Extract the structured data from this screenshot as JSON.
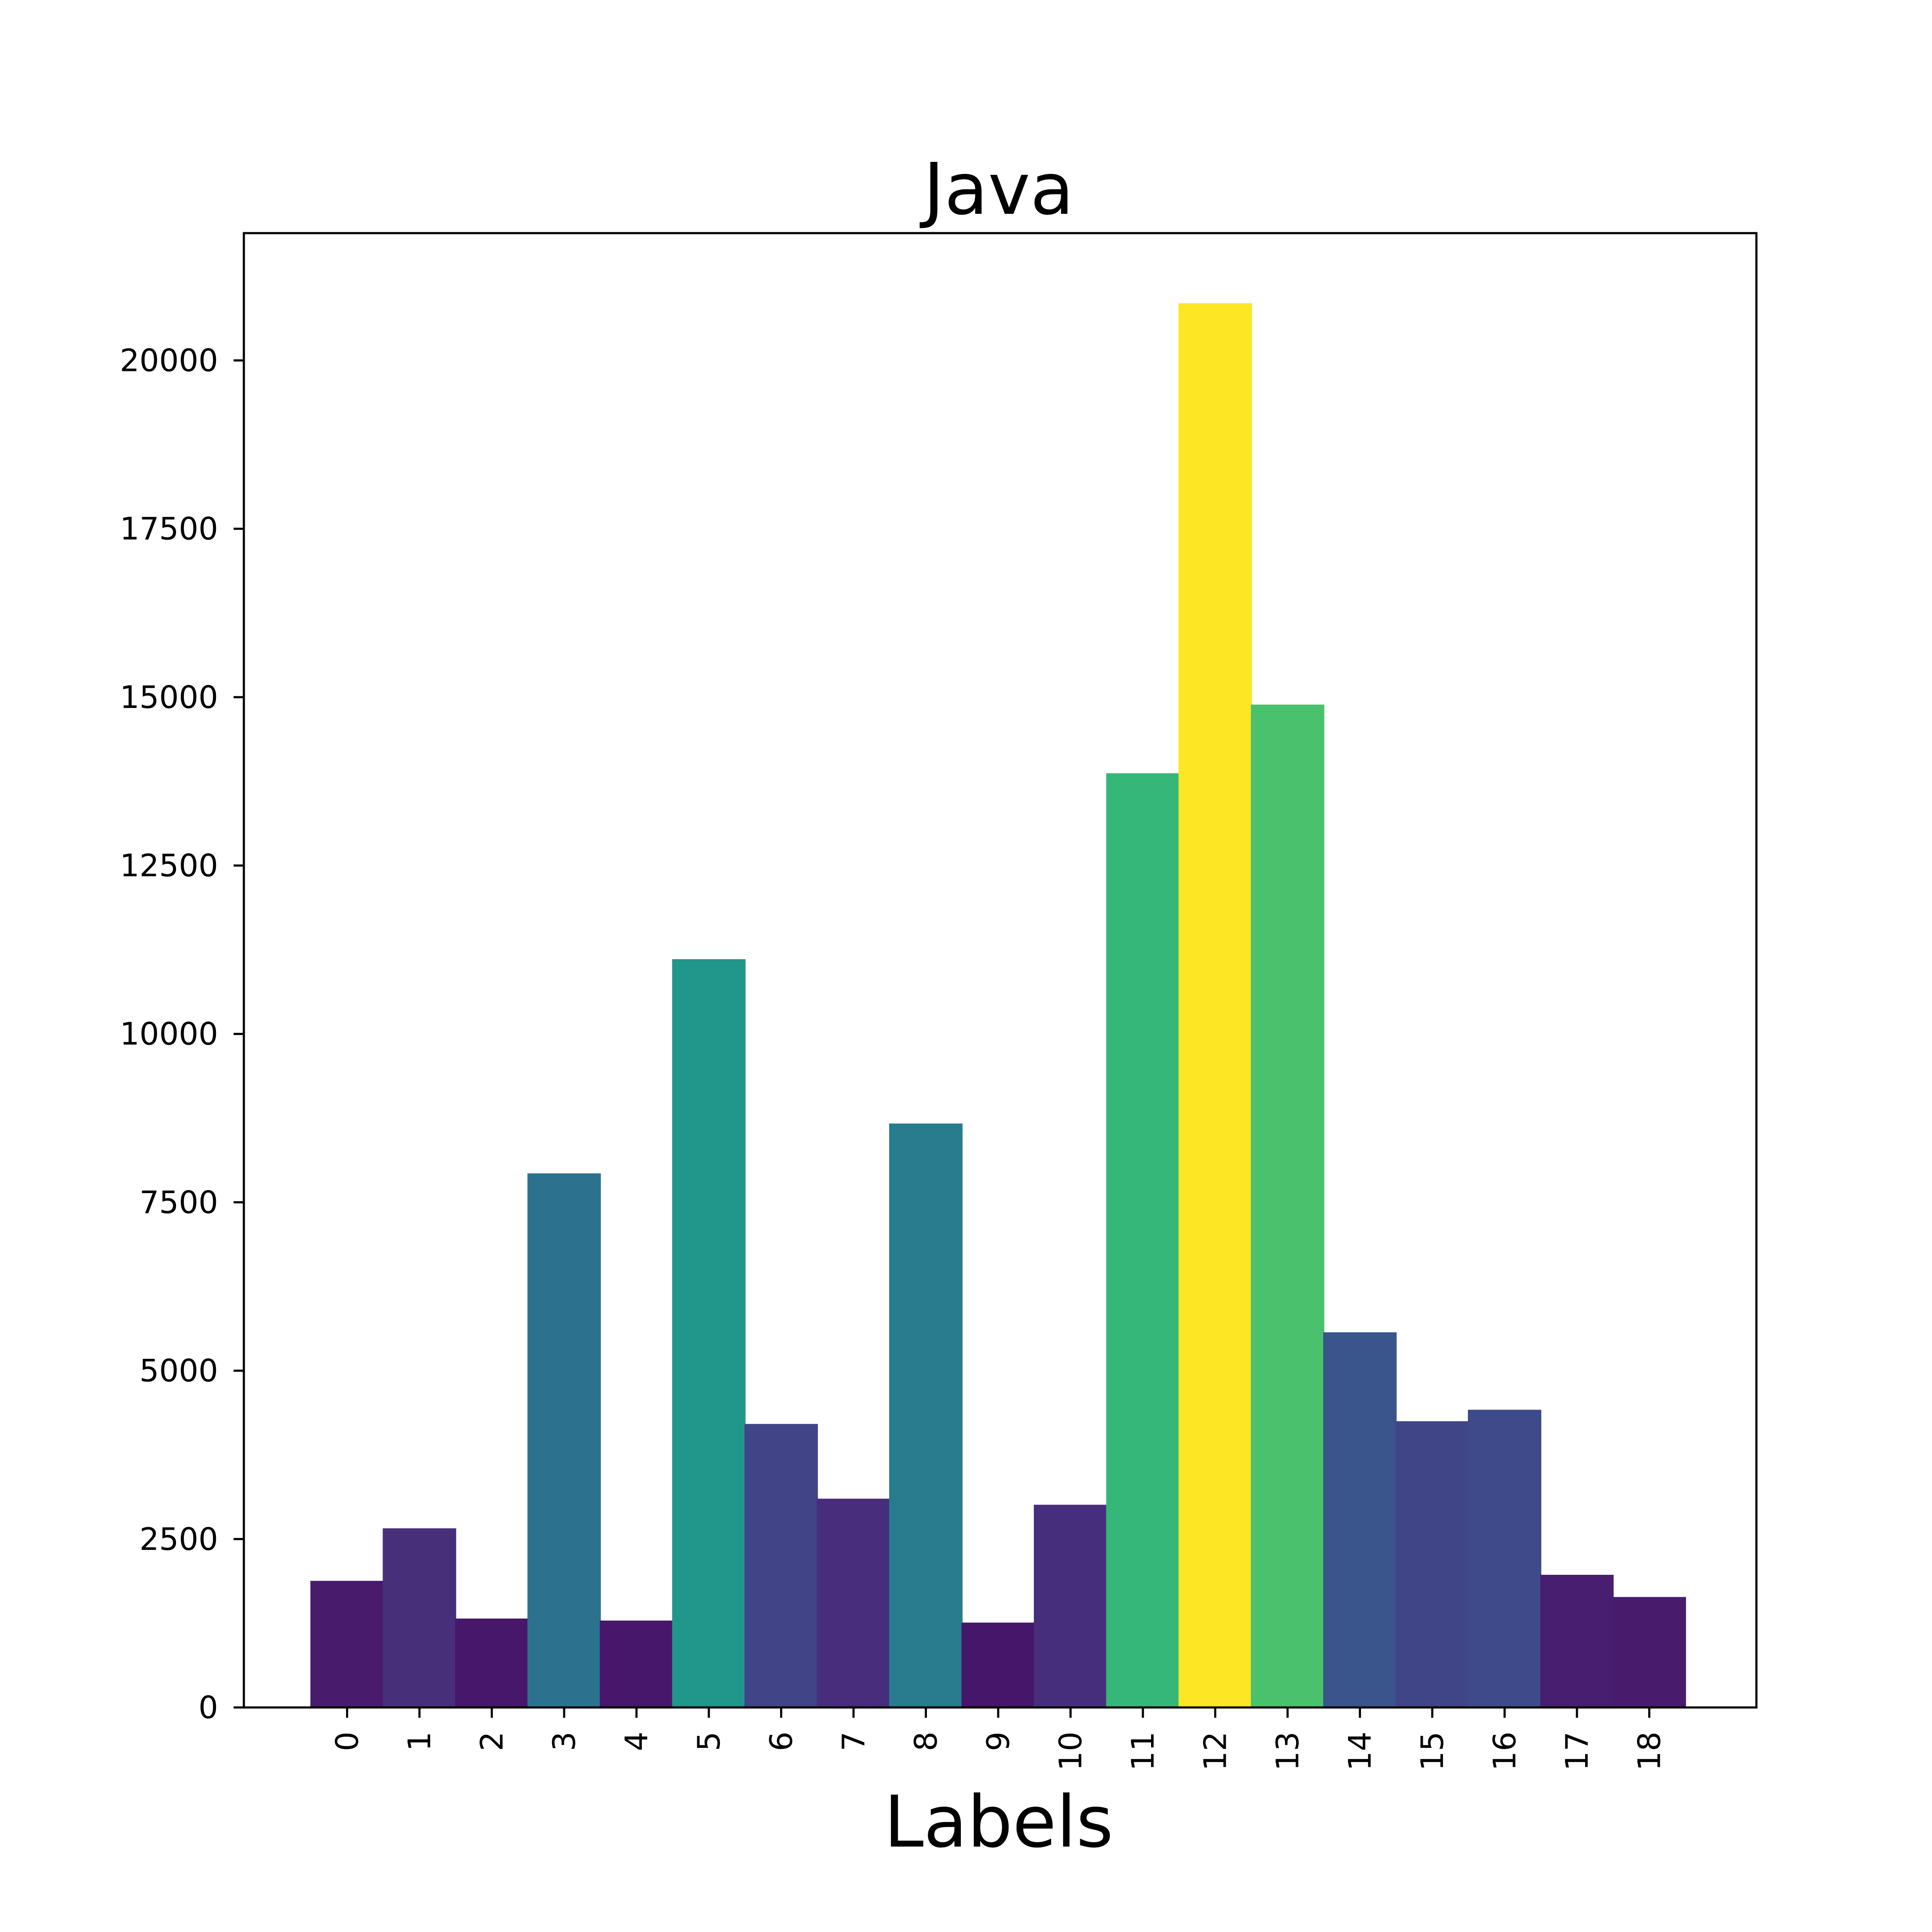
{
  "chart_data": {
    "type": "bar",
    "title": "Java",
    "xlabel": "Labels",
    "ylabel": "",
    "categories": [
      "0",
      "1",
      "2",
      "3",
      "4",
      "5",
      "6",
      "7",
      "8",
      "9",
      "10",
      "11",
      "12",
      "13",
      "14",
      "15",
      "16",
      "17",
      "18"
    ],
    "values": [
      1880,
      2660,
      1320,
      7930,
      1290,
      11110,
      4210,
      3100,
      8670,
      1260,
      3010,
      13870,
      20850,
      14890,
      5570,
      4250,
      4420,
      1970,
      1640
    ],
    "colors": [
      "#481b6d",
      "#482f7a",
      "#46176a",
      "#2c728e",
      "#46176a",
      "#21968b",
      "#414487",
      "#472d7b",
      "#287c8e",
      "#46166a",
      "#472e7c",
      "#35b779",
      "#fde725",
      "#4ac16d",
      "#3a548c",
      "#404588",
      "#3e4a89",
      "#481e70",
      "#481b6d"
    ],
    "yticks": [
      0,
      2500,
      5000,
      7500,
      10000,
      12500,
      15000,
      17500,
      20000
    ],
    "ylim": [
      0,
      21890
    ],
    "grid": false,
    "legend": "none"
  }
}
